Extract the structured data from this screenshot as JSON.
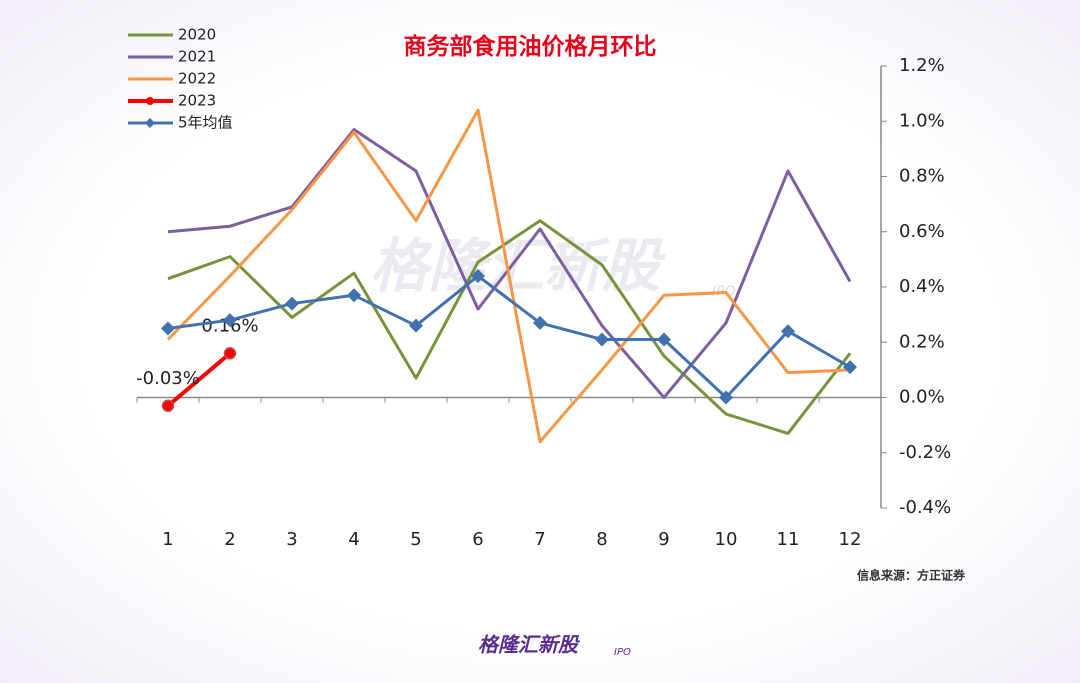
{
  "chart_data": {
    "type": "line",
    "title": "商务部食用油价格月环比",
    "categories": [
      "1",
      "2",
      "3",
      "4",
      "5",
      "6",
      "7",
      "8",
      "9",
      "10",
      "11",
      "12"
    ],
    "series": [
      {
        "name": "2020",
        "color": "#77933c",
        "values": [
          0.43,
          0.51,
          0.29,
          0.45,
          0.07,
          0.49,
          0.64,
          0.48,
          0.15,
          -0.06,
          -0.13,
          0.16
        ]
      },
      {
        "name": "2021",
        "color": "#7c5f9f",
        "values": [
          0.6,
          0.62,
          0.69,
          0.97,
          0.82,
          0.32,
          0.61,
          0.26,
          0.0,
          0.27,
          0.82,
          0.42
        ]
      },
      {
        "name": "2022",
        "color": "#f79646",
        "values": [
          0.21,
          0.44,
          0.68,
          0.96,
          0.64,
          1.04,
          -0.16,
          0.1,
          0.37,
          0.38,
          0.09,
          0.1
        ]
      },
      {
        "name": "2023",
        "color": "#ff0000",
        "marker": "circle",
        "values": [
          -0.03,
          0.16,
          null,
          null,
          null,
          null,
          null,
          null,
          null,
          null,
          null,
          null
        ],
        "value_labels": [
          "-0.03%",
          "0.16%",
          null,
          null,
          null,
          null,
          null,
          null,
          null,
          null,
          null,
          null
        ]
      },
      {
        "name": "5年均值",
        "color": "#3f72af",
        "marker": "diamond",
        "values": [
          0.25,
          0.28,
          0.34,
          0.37,
          0.26,
          0.44,
          0.27,
          0.21,
          0.21,
          0.0,
          0.24,
          0.11
        ]
      }
    ],
    "ylim": [
      -0.4,
      1.2
    ],
    "yticks": [
      {
        "value": -0.4,
        "label": "-0.4%"
      },
      {
        "value": -0.2,
        "label": "-0.2%"
      },
      {
        "value": 0,
        "label": "0.0%"
      },
      {
        "value": 0.2,
        "label": "0.2%"
      },
      {
        "value": 0.4,
        "label": "0.4%"
      },
      {
        "value": 0.6,
        "label": "0.6%"
      },
      {
        "value": 0.8,
        "label": "0.8%"
      },
      {
        "value": 1.0,
        "label": "1.0%"
      },
      {
        "value": 1.2,
        "label": "1.2%"
      }
    ],
    "y_axis_side": "right",
    "legend": "upper left",
    "grid": false,
    "source": "信息来源：方正证券"
  },
  "watermark": {
    "text": "格隆汇新股",
    "tag": "IPO"
  },
  "footer": {
    "text": "格隆汇新股",
    "tag": "IPO"
  }
}
